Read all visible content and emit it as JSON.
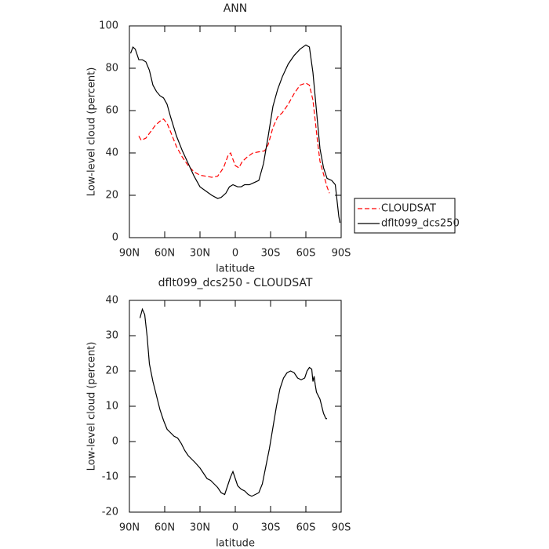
{
  "chart_data": [
    {
      "type": "line",
      "title": "ANN",
      "x_label": "latitude",
      "y_label": "Low-level cloud (percent)",
      "xlim": [
        90,
        -90
      ],
      "xticks": [
        {
          "value": 90,
          "label": "90N"
        },
        {
          "value": 60,
          "label": "60N"
        },
        {
          "value": 30,
          "label": "30N"
        },
        0,
        {
          "value": -30,
          "label": "30S"
        },
        {
          "value": -60,
          "label": "60S"
        },
        {
          "value": -90,
          "label": "90S"
        }
      ],
      "ylim": [
        0,
        100
      ],
      "yticks": [
        0,
        20,
        40,
        60,
        80,
        100
      ],
      "legend": "right",
      "series": [
        {
          "name": "CLOUDSAT",
          "color": "#ff0000",
          "line_style": "dashed",
          "x": [
            82,
            80,
            76,
            72,
            68,
            64,
            61,
            58,
            55,
            50,
            45,
            40,
            35,
            30,
            25,
            20,
            15,
            10,
            6,
            4,
            0,
            -3,
            -6,
            -10,
            -15,
            -20,
            -25,
            -28,
            -32,
            -36,
            -40,
            -45,
            -50,
            -55,
            -60,
            -63,
            -66,
            -68,
            -70,
            -72,
            -75,
            -78,
            -80
          ],
          "values": [
            48,
            46,
            47,
            50,
            53,
            55,
            56,
            54,
            50,
            43,
            38,
            34,
            31,
            29.5,
            29,
            28.5,
            29,
            33,
            39,
            40,
            34,
            33,
            36,
            38,
            40,
            40.5,
            41,
            44,
            52,
            57,
            59,
            63,
            68,
            72,
            73,
            72,
            65,
            55,
            45,
            36,
            30,
            24,
            21
          ]
        },
        {
          "name": "dflt099_dcs250",
          "color": "#000000",
          "line_style": "solid",
          "x": [
            89,
            87,
            85,
            82,
            79,
            76,
            73,
            70,
            67,
            64,
            61,
            58,
            55,
            50,
            45,
            40,
            35,
            30,
            25,
            20,
            15,
            12,
            8,
            5,
            2,
            0,
            -2,
            -5,
            -8,
            -12,
            -16,
            -20,
            -24,
            -28,
            -32,
            -36,
            -40,
            -45,
            -50,
            -55,
            -60,
            -63,
            -66,
            -69,
            -72,
            -75,
            -78,
            -82,
            -85,
            -88,
            -89
          ],
          "values": [
            87,
            90,
            89,
            84,
            84,
            83,
            79,
            72,
            69,
            67,
            66,
            63,
            57,
            48,
            41,
            35,
            29,
            24,
            22,
            20,
            18.5,
            19,
            21,
            24,
            25,
            24.5,
            24,
            24,
            25,
            25,
            26,
            27,
            35,
            48,
            62,
            70,
            76,
            82,
            86,
            89,
            91,
            90,
            78,
            60,
            42,
            33,
            28,
            27,
            25,
            10,
            7
          ]
        }
      ]
    },
    {
      "type": "line",
      "title": "dflt099_dcs250 - CLOUDSAT",
      "x_label": "latitude",
      "y_label": "Low-level cloud (percent)",
      "xlim": [
        90,
        -90
      ],
      "xticks": [
        {
          "value": 90,
          "label": "90N"
        },
        {
          "value": 60,
          "label": "60N"
        },
        {
          "value": 30,
          "label": "30N"
        },
        0,
        {
          "value": -30,
          "label": "30S"
        },
        {
          "value": -60,
          "label": "60S"
        },
        {
          "value": -90,
          "label": "90S"
        }
      ],
      "ylim": [
        -20,
        40
      ],
      "yticks": [
        -20,
        -10,
        0,
        10,
        20,
        30,
        40
      ],
      "series": [
        {
          "color": "#000000",
          "line_style": "solid",
          "x": [
            81,
            79,
            77,
            75,
            73,
            70,
            67,
            64,
            61,
            58,
            55,
            52,
            49,
            46,
            43,
            40,
            37,
            34,
            30,
            27,
            24,
            21,
            18,
            15,
            12,
            9,
            6,
            4,
            2,
            0,
            -2,
            -5,
            -8,
            -11,
            -14,
            -17,
            -20,
            -23,
            -26,
            -29,
            -32,
            -35,
            -38,
            -41,
            -44,
            -47,
            -50,
            -53,
            -56,
            -59,
            -61,
            -63,
            -65,
            -66,
            -67,
            -68,
            -69,
            -72,
            -75,
            -77,
            -78
          ],
          "values": [
            35,
            37.5,
            36,
            30,
            22,
            17,
            13,
            9,
            6,
            3.5,
            2.5,
            1.5,
            1,
            -0.5,
            -2.5,
            -4,
            -5,
            -6,
            -7.5,
            -9,
            -10.5,
            -11,
            -12,
            -13,
            -14.5,
            -15,
            -12,
            -10,
            -8.5,
            -10.5,
            -12.5,
            -13.5,
            -14,
            -15,
            -15.5,
            -15,
            -14.5,
            -12,
            -7,
            -2,
            4,
            10,
            15,
            18,
            19.5,
            20,
            19.5,
            18,
            17.5,
            18,
            20,
            21,
            20.5,
            17,
            18.5,
            16,
            14,
            12,
            8,
            6.5,
            6.5
          ]
        }
      ]
    }
  ]
}
